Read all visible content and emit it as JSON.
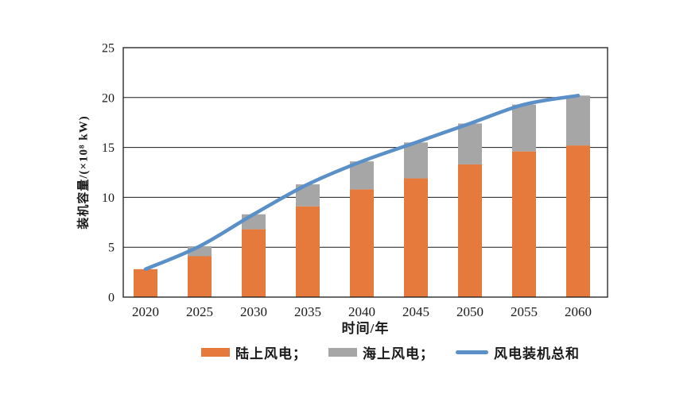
{
  "chart_data": {
    "type": "bar",
    "subtype": "stacked-bar-with-line",
    "categories": [
      "2020",
      "2025",
      "2030",
      "2035",
      "2040",
      "2045",
      "2050",
      "2055",
      "2060"
    ],
    "series": [
      {
        "name": "陆上风电",
        "kind": "bar",
        "color": "#E67A3C",
        "values": [
          2.8,
          4.1,
          6.8,
          9.1,
          10.8,
          11.9,
          13.3,
          14.6,
          15.2
        ]
      },
      {
        "name": "海上风电",
        "kind": "bar",
        "color": "#A6A6A6",
        "values": [
          0.0,
          1.0,
          1.5,
          2.2,
          2.8,
          3.6,
          4.1,
          4.7,
          5.0
        ]
      },
      {
        "name": "风电装机总和",
        "kind": "line",
        "color": "#5B8FC8",
        "values": [
          2.8,
          5.1,
          8.3,
          11.3,
          13.6,
          15.5,
          17.4,
          19.3,
          20.2
        ]
      }
    ],
    "title": "",
    "xlabel": "时间/年",
    "ylabel": "装机容量/(×10⁸ kW)",
    "ylim": [
      0,
      25
    ],
    "yticks": [
      0,
      5,
      10,
      15,
      20,
      25
    ],
    "grid": true,
    "frame": true,
    "axis_color": "#1a1a1a",
    "legend": {
      "position": "bottom",
      "items": [
        {
          "label": "陆上风电；"
        },
        {
          "label": "海上风电；"
        },
        {
          "label": "风电装机总和"
        }
      ]
    }
  }
}
